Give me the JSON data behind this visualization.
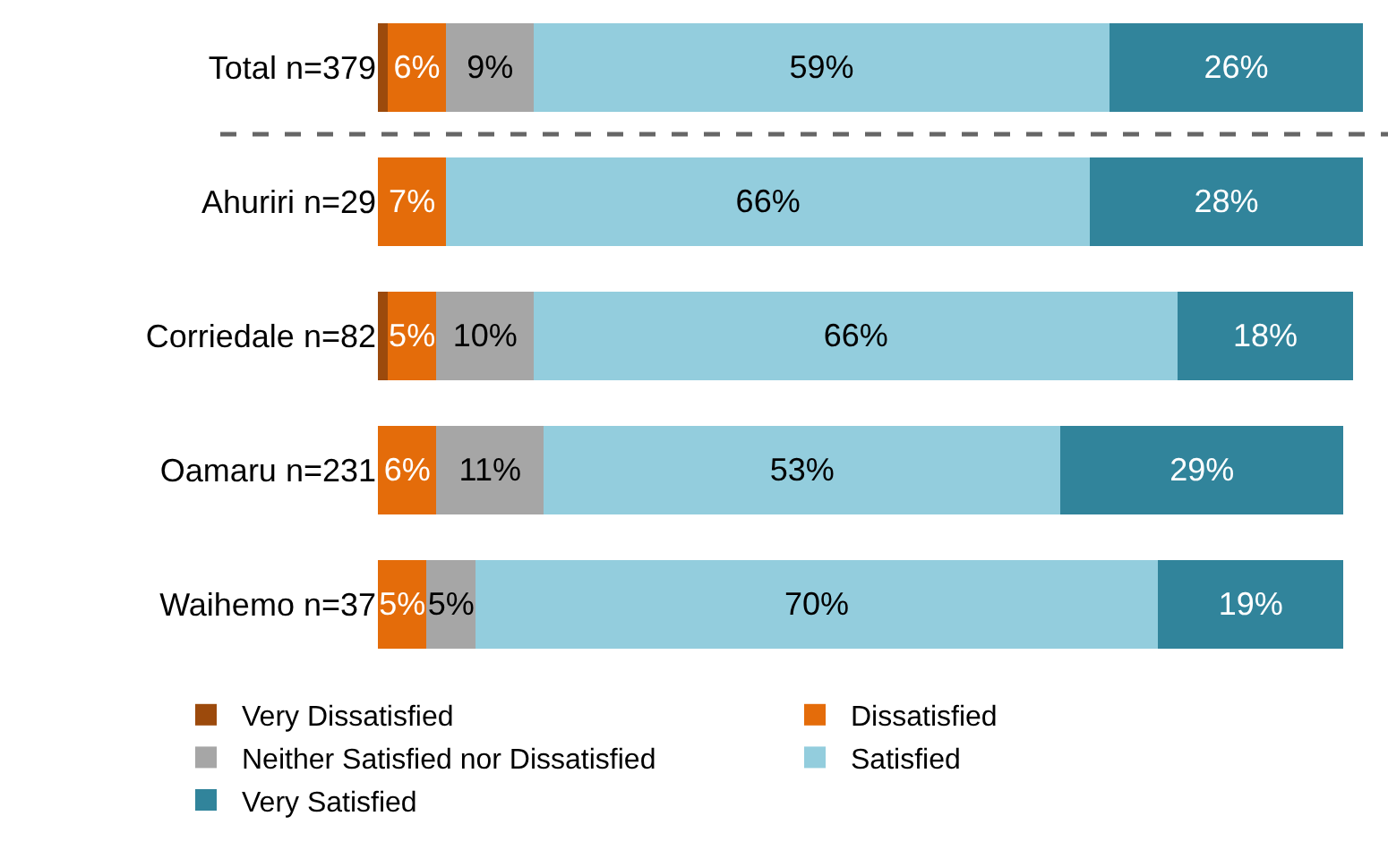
{
  "chart_data": {
    "type": "bar",
    "orientation": "horizontal",
    "stacked": true,
    "categories": [
      "Total n=379",
      "Ahuriri n=29",
      "Corriedale n=82",
      "Oamaru n=231",
      "Waihemo n=37"
    ],
    "series": [
      {
        "name": "Very Dissatisfied",
        "color": "#9c4a0c",
        "values": [
          1,
          null,
          1,
          null,
          null
        ],
        "value_labels": [
          null,
          null,
          null,
          null,
          null
        ]
      },
      {
        "name": "Dissatisfied",
        "color": "#e46c0a",
        "values": [
          6,
          7,
          5,
          6,
          5
        ],
        "value_labels": [
          "6%",
          "7%",
          "5%",
          "6%",
          "5%"
        ]
      },
      {
        "name": "Neither Satisfied nor Dissatisfied",
        "color": "#a6a6a6",
        "values": [
          9,
          null,
          10,
          11,
          5
        ],
        "value_labels": [
          "9%",
          null,
          "10%",
          "11%",
          "5%"
        ]
      },
      {
        "name": "Satisfied",
        "color": "#93cddd",
        "values": [
          59,
          66,
          66,
          53,
          70
        ],
        "value_labels": [
          "59%",
          "66%",
          "66%",
          "53%",
          "70%"
        ]
      },
      {
        "name": "Very Satisfied",
        "color": "#31849b",
        "values": [
          26,
          28,
          18,
          29,
          19
        ],
        "value_labels": [
          "26%",
          "28%",
          "18%",
          "29%",
          "19%"
        ]
      }
    ],
    "xlim": [
      0,
      101
    ],
    "tick_labels": "y",
    "grid": false,
    "legend": "bottom"
  }
}
